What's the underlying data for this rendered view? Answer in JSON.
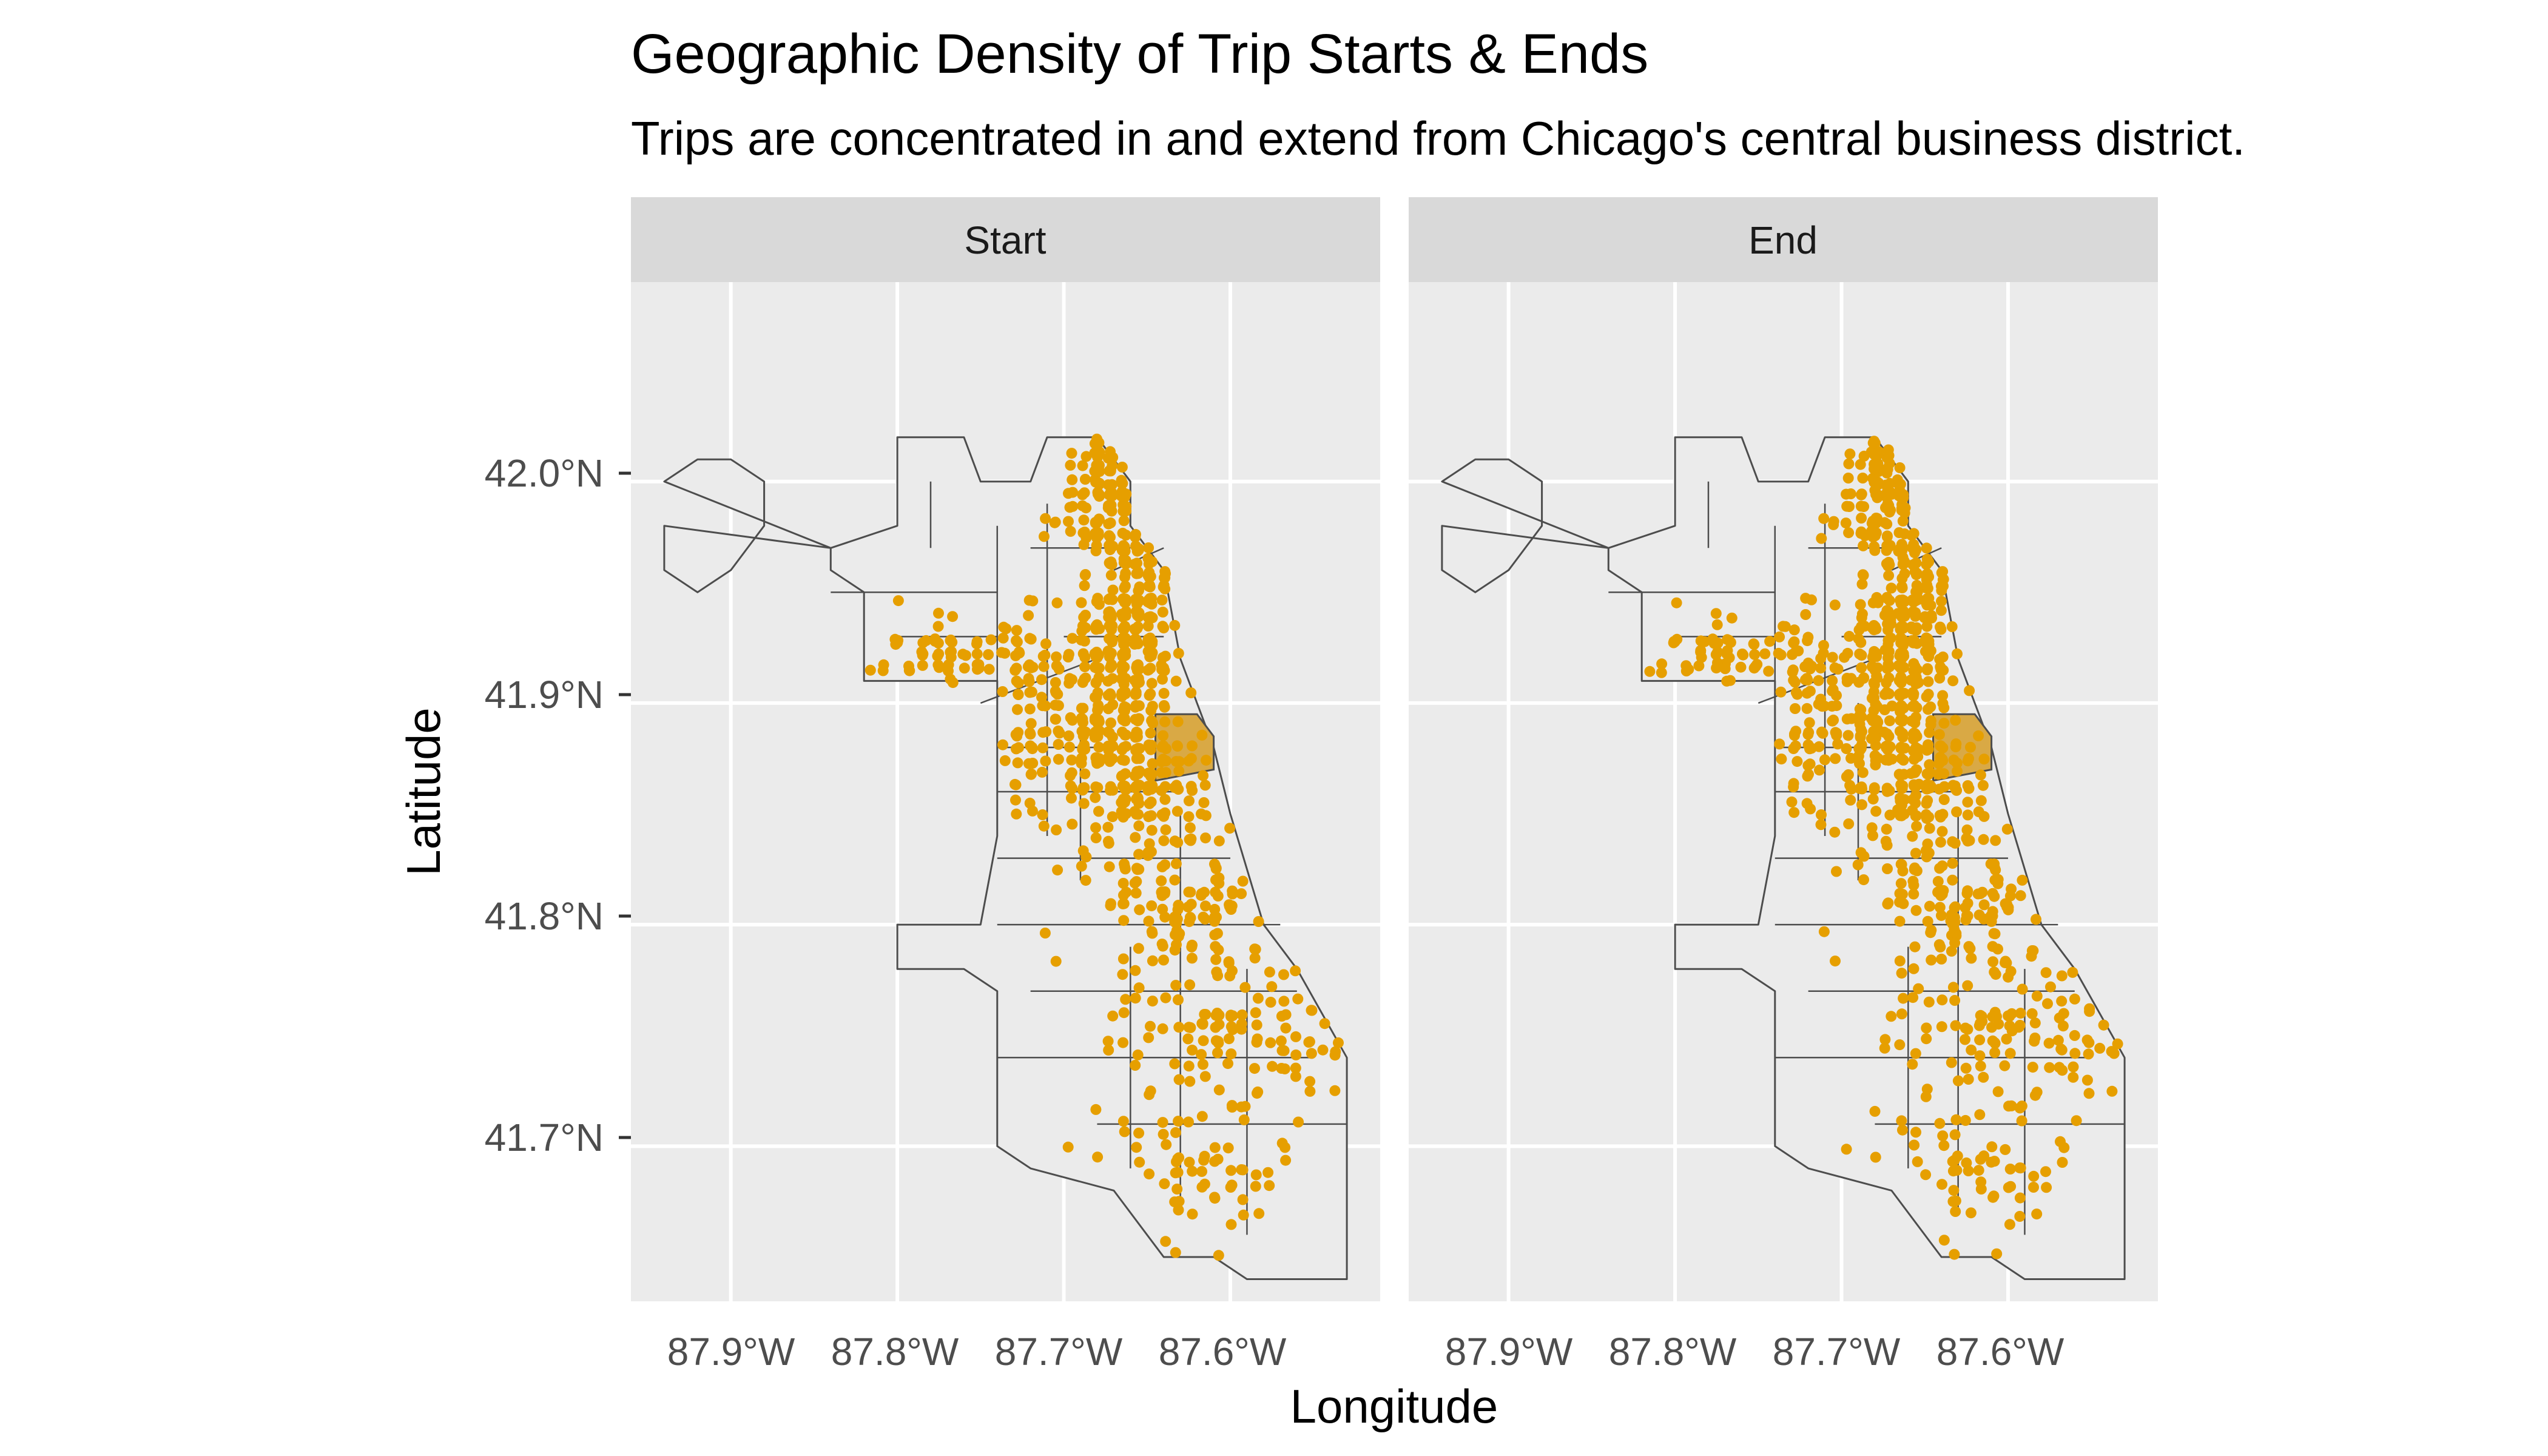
{
  "title": "Geographic Density of Trip Starts & Ends",
  "subtitle": "Trips are concentrated in and extend from Chicago's central business district.",
  "x_axis": {
    "title": "Longitude",
    "ticks": [
      "87.9°W",
      "87.8°W",
      "87.7°W",
      "87.6°W"
    ]
  },
  "y_axis": {
    "title": "Latitude",
    "ticks": [
      "42.0°N",
      "41.9°N",
      "41.8°N",
      "41.7°N"
    ]
  },
  "panels": [
    {
      "label": "Start"
    },
    {
      "label": "End"
    }
  ],
  "colors": {
    "points": "#e69f00",
    "highlight_area": "#d9a945",
    "panel_bg": "#ebebeb",
    "strip_bg": "#d9d9d9",
    "boundary": "#4d4d4d"
  },
  "chart_data": {
    "type": "scatter",
    "subtype": "faceted point map over city boundary",
    "title": "Geographic Density of Trip Starts & Ends",
    "subtitle": "Trips are concentrated in and extend from Chicago's central business district.",
    "xlabel": "Longitude",
    "ylabel": "Latitude",
    "xlim": [
      -87.96,
      -87.51
    ],
    "ylim": [
      41.63,
      42.09
    ],
    "x_ticks": [
      -87.9,
      -87.8,
      -87.7,
      -87.6
    ],
    "y_ticks": [
      42.0,
      41.9,
      41.8,
      41.7
    ],
    "facets": [
      "Start",
      "End"
    ],
    "highlighted_region": "central business district (Loop)",
    "point_color": "#e69f00",
    "city_outline": [
      [
        -87.94,
        42.0
      ],
      [
        -87.92,
        42.01
      ],
      [
        -87.9,
        42.01
      ],
      [
        -87.88,
        42.0
      ],
      [
        -87.88,
        41.98
      ],
      [
        -87.9,
        41.96
      ],
      [
        -87.92,
        41.95
      ],
      [
        -87.94,
        41.96
      ],
      [
        -87.94,
        41.98
      ],
      [
        -87.84,
        41.97
      ],
      [
        -87.8,
        41.98
      ],
      [
        -87.8,
        42.02
      ],
      [
        -87.76,
        42.02
      ],
      [
        -87.75,
        42.0
      ],
      [
        -87.72,
        42.0
      ],
      [
        -87.71,
        42.02
      ],
      [
        -87.68,
        42.02
      ],
      [
        -87.66,
        42.0
      ],
      [
        -87.66,
        41.98
      ],
      [
        -87.64,
        41.96
      ],
      [
        -87.63,
        41.92
      ],
      [
        -87.62,
        41.9
      ],
      [
        -87.61,
        41.88
      ],
      [
        -87.6,
        41.85
      ],
      [
        -87.58,
        41.8
      ],
      [
        -87.56,
        41.78
      ],
      [
        -87.53,
        41.74
      ],
      [
        -87.53,
        41.64
      ],
      [
        -87.59,
        41.64
      ],
      [
        -87.61,
        41.65
      ],
      [
        -87.64,
        41.65
      ],
      [
        -87.67,
        41.68
      ],
      [
        -87.72,
        41.69
      ],
      [
        -87.74,
        41.7
      ],
      [
        -87.74,
        41.77
      ],
      [
        -87.76,
        41.78
      ],
      [
        -87.8,
        41.78
      ],
      [
        -87.8,
        41.8
      ],
      [
        -87.75,
        41.8
      ],
      [
        -87.74,
        41.84
      ],
      [
        -87.74,
        41.91
      ],
      [
        -87.78,
        41.91
      ],
      [
        -87.82,
        41.91
      ],
      [
        -87.82,
        41.95
      ],
      [
        -87.84,
        41.96
      ],
      [
        -87.84,
        41.97
      ]
    ],
    "loop_area": [
      [
        -87.645,
        41.895
      ],
      [
        -87.62,
        41.895
      ],
      [
        -87.61,
        41.885
      ],
      [
        -87.61,
        41.87
      ],
      [
        -87.645,
        41.865
      ]
    ],
    "points_density": [
      {
        "center": [
          -87.66,
          41.94
        ],
        "spread": [
          0.03,
          0.06
        ],
        "count": 260
      },
      {
        "center": [
          -87.675,
          42.0
        ],
        "spread": [
          0.02,
          0.04
        ],
        "count": 110
      },
      {
        "center": [
          -87.69,
          41.89
        ],
        "spread": [
          0.06,
          0.04
        ],
        "count": 200
      },
      {
        "center": [
          -87.65,
          41.86
        ],
        "spread": [
          0.04,
          0.025
        ],
        "count": 110
      },
      {
        "center": [
          -87.76,
          41.92
        ],
        "spread": [
          0.07,
          0.02
        ],
        "count": 80
      },
      {
        "center": [
          -87.63,
          41.81
        ],
        "spread": [
          0.06,
          0.04
        ],
        "count": 130
      },
      {
        "center": [
          -87.6,
          41.75
        ],
        "spread": [
          0.06,
          0.04
        ],
        "count": 110
      },
      {
        "center": [
          -87.62,
          41.69
        ],
        "spread": [
          0.06,
          0.03
        ],
        "count": 60
      }
    ]
  }
}
